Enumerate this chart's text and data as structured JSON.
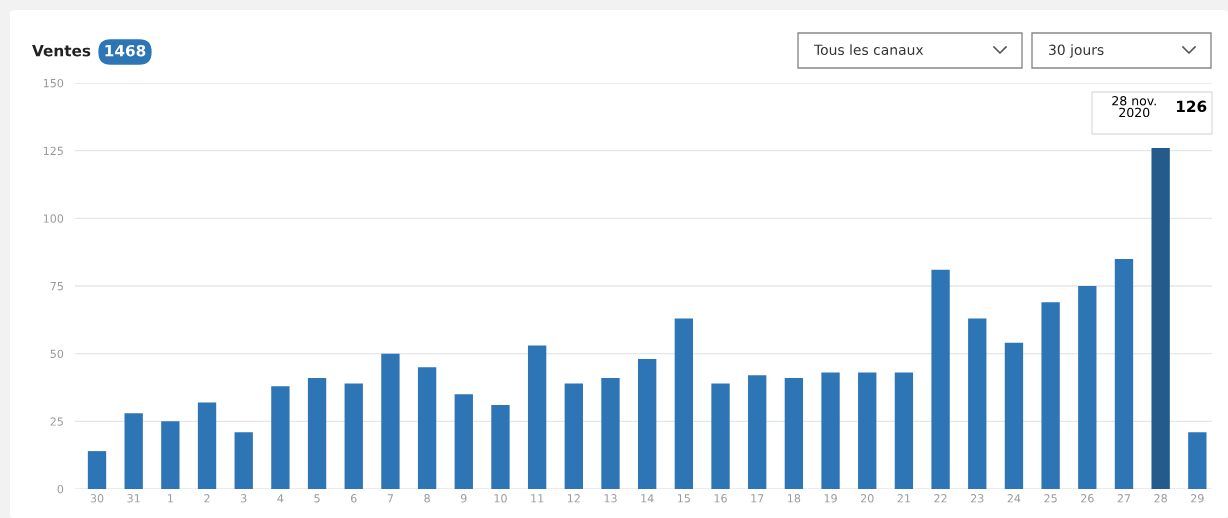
{
  "chart_data": {
    "type": "bar",
    "title": "Ventes",
    "subtitle": "1468",
    "categories": [
      "30",
      "31",
      "1",
      "2",
      "3",
      "4",
      "5",
      "6",
      "7",
      "8",
      "9",
      "10",
      "11",
      "12",
      "13",
      "14",
      "15",
      "16",
      "17",
      "18",
      "19",
      "20",
      "21",
      "22",
      "23",
      "24",
      "25",
      "26",
      "27",
      "28",
      "29"
    ],
    "values": [
      14,
      28,
      25,
      32,
      21,
      38,
      41,
      39,
      50,
      45,
      35,
      31,
      53,
      39,
      41,
      48,
      63,
      39,
      42,
      41,
      43,
      43,
      43,
      81,
      63,
      54,
      69,
      75,
      85,
      126,
      21
    ],
    "colors": [
      "#2e75b6",
      "#2e75b6",
      "#2e75b6",
      "#2e75b6",
      "#2e75b6",
      "#2e75b6",
      "#2e75b6",
      "#2e75b6",
      "#2e75b6",
      "#2e75b6",
      "#2e75b6",
      "#2e75b6",
      "#2e75b6",
      "#2e75b6",
      "#2e75b6",
      "#2e75b6",
      "#2e75b6",
      "#2e75b6",
      "#2e75b6",
      "#2e75b6",
      "#2e75b6",
      "#2e75b6",
      "#2e75b6",
      "#2e75b6",
      "#2e75b6",
      "#2e75b6",
      "#2e75b6",
      "#2e75b6",
      "#2e75b6",
      "#245a8c",
      "#2e75b6"
    ],
    "ylim": [
      0,
      150
    ],
    "yticks": [
      0,
      25,
      50,
      75,
      100,
      125,
      150
    ],
    "grid": "y",
    "legend": false,
    "annotations": [
      "Tous les canaux",
      "30 jours",
      {
        "text": "28 nov.\n2020",
        "x": "28",
        "y": 126
      },
      {
        "text": "126",
        "x": "28",
        "y": 126
      }
    ]
  }
}
